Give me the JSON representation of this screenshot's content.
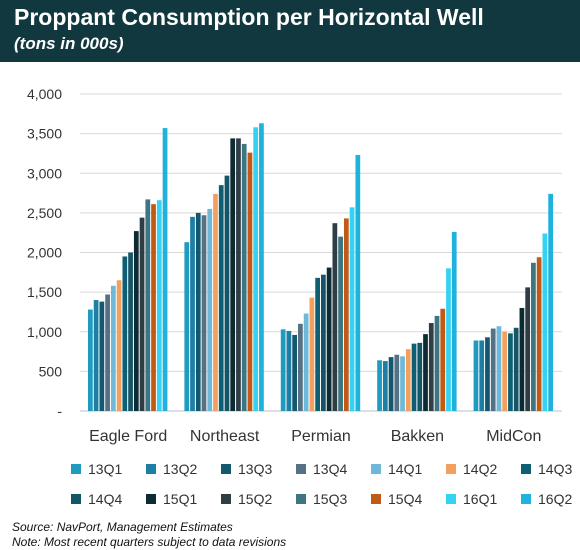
{
  "header": {
    "title": "Proppant Consumption per Horizontal Well",
    "subtitle": "(tons in 000s)"
  },
  "footer": {
    "source": "Source: NavPort, Management Estimates",
    "note": "Note: Most recent quarters subject to data revisions"
  },
  "chart_data": {
    "type": "bar",
    "categories": [
      "Eagle Ford",
      "Northeast",
      "Permian",
      "Bakken",
      "MidCon"
    ],
    "ylim": [
      0,
      4000
    ],
    "yticks": [
      {
        "value": 0,
        "label": "-"
      },
      {
        "value": 500,
        "label": "500"
      },
      {
        "value": 1000,
        "label": "1,000"
      },
      {
        "value": 1500,
        "label": "1,500"
      },
      {
        "value": 2000,
        "label": "2,000"
      },
      {
        "value": 2500,
        "label": "2,500"
      },
      {
        "value": 3000,
        "label": "3,000"
      },
      {
        "value": 3500,
        "label": "3,500"
      },
      {
        "value": 4000,
        "label": "4,000"
      }
    ],
    "grid": true,
    "legend_position": "bottom",
    "series": [
      {
        "name": "13Q1",
        "color": "#1f9bc0",
        "values": [
          1280,
          2130,
          1030,
          640,
          890
        ]
      },
      {
        "name": "13Q2",
        "color": "#1c7fa3",
        "values": [
          1400,
          2450,
          1010,
          630,
          890
        ]
      },
      {
        "name": "13Q3",
        "color": "#13586e",
        "values": [
          1380,
          2500,
          960,
          680,
          930
        ]
      },
      {
        "name": "13Q4",
        "color": "#557184",
        "values": [
          1470,
          2470,
          1100,
          710,
          1040
        ]
      },
      {
        "name": "14Q1",
        "color": "#6fb8d8",
        "values": [
          1580,
          2550,
          1230,
          690,
          1070
        ]
      },
      {
        "name": "14Q2",
        "color": "#f2a05f",
        "values": [
          1650,
          2740,
          1430,
          780,
          1000
        ]
      },
      {
        "name": "14Q3",
        "color": "#0f5f74",
        "values": [
          1950,
          2850,
          1680,
          850,
          980
        ]
      },
      {
        "name": "14Q4",
        "color": "#145567",
        "values": [
          2000,
          2970,
          1720,
          860,
          1050
        ]
      },
      {
        "name": "15Q1",
        "color": "#0d2b33",
        "values": [
          2270,
          3440,
          1810,
          970,
          1300
        ]
      },
      {
        "name": "15Q2",
        "color": "#2f3d45",
        "values": [
          2440,
          3440,
          2370,
          1110,
          1560
        ]
      },
      {
        "name": "15Q3",
        "color": "#3d7582",
        "values": [
          2670,
          3370,
          2200,
          1200,
          1870
        ]
      },
      {
        "name": "15Q4",
        "color": "#c05b17",
        "values": [
          2610,
          3260,
          2430,
          1290,
          1940
        ]
      },
      {
        "name": "16Q1",
        "color": "#34d2f3",
        "values": [
          2660,
          3580,
          2570,
          1800,
          2240
        ]
      },
      {
        "name": "16Q2",
        "color": "#1eb2dc",
        "values": [
          3570,
          3630,
          3230,
          2260,
          2740
        ]
      }
    ]
  }
}
